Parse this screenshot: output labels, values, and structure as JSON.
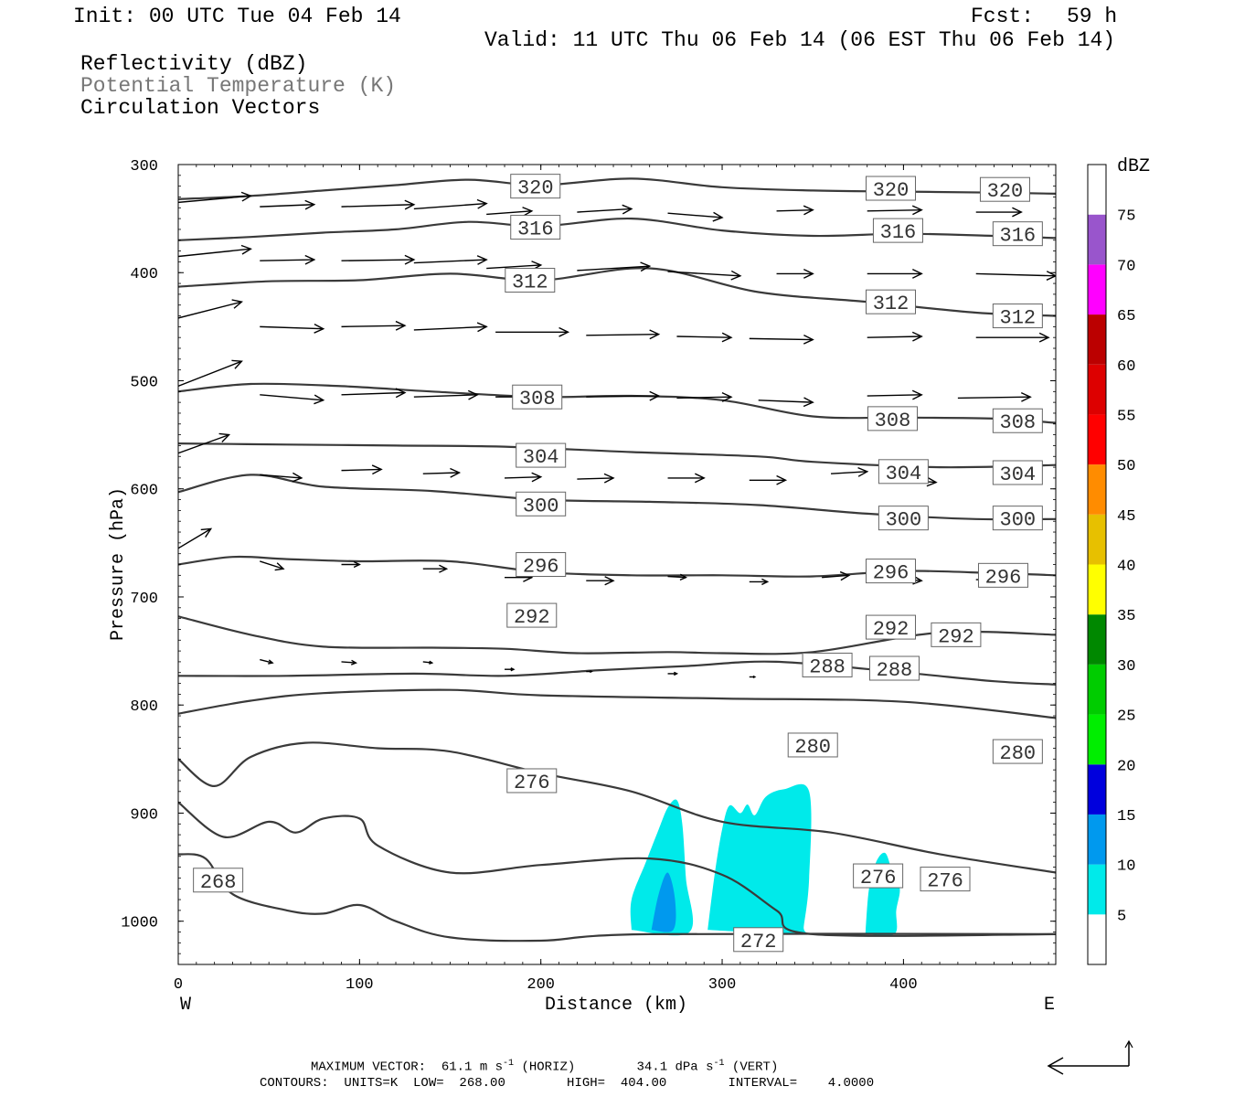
{
  "header": {
    "init": "Init: 00 UTC Tue 04 Feb 14",
    "fcst_label": "Fcst:",
    "fcst_value": "59 h",
    "valid": "Valid: 11 UTC Thu 06 Feb 14 (06 EST Thu 06 Feb 14)"
  },
  "legend_fields": {
    "field1": "Reflectivity (dBZ)",
    "field2": "Potential Temperature (K)",
    "field3": "Circulation Vectors"
  },
  "colorbar": {
    "title": "dBZ",
    "levels": [
      "5",
      "10",
      "15",
      "20",
      "25",
      "30",
      "35",
      "40",
      "45",
      "50",
      "55",
      "60",
      "65",
      "70",
      "75"
    ],
    "colors": [
      "#00eaea",
      "#0099ee",
      "#0000dd",
      "#00ee00",
      "#00cc00",
      "#008800",
      "#ffff00",
      "#e7c000",
      "#ff8c00",
      "#ff0000",
      "#dd0000",
      "#bb0000",
      "#ff00ff",
      "#9955cc"
    ]
  },
  "footer": {
    "line1_a": "MAXIMUM VECTOR:  61.1 m s",
    "line1_b": " (HORIZ)",
    "line1_c": "34.1 dPa s",
    "line1_d": " (VERT)",
    "sup": "-1",
    "line2": "CONTOURS:  UNITS=K  LOW=  268.00        HIGH=  404.00        INTERVAL=    4.0000"
  },
  "chart_data": {
    "type": "contour",
    "xlabel": "Distance (km)",
    "ylabel": "Pressure (hPa)",
    "xlim": [
      0,
      484
    ],
    "ylim": [
      1040,
      300
    ],
    "x_ticks": [
      "0",
      "100",
      "200",
      "300",
      "400"
    ],
    "y_ticks": [
      "300",
      "400",
      "500",
      "600",
      "700",
      "800",
      "900",
      "1000"
    ],
    "x_end_labels": {
      "left": "W",
      "right": "E"
    },
    "theta_contours": [
      {
        "level": 320,
        "points": [
          [
            0,
            332
          ],
          [
            40,
            329
          ],
          [
            80,
            324
          ],
          [
            120,
            319
          ],
          [
            160,
            314
          ],
          [
            200,
            319
          ],
          [
            250,
            313
          ],
          [
            300,
            321
          ],
          [
            350,
            324
          ],
          [
            400,
            325
          ],
          [
            450,
            326
          ],
          [
            484,
            327
          ]
        ],
        "labels": [
          [
            197,
            320
          ],
          [
            393,
            322
          ],
          [
            456,
            323
          ]
        ]
      },
      {
        "level": 316,
        "points": [
          [
            0,
            370
          ],
          [
            40,
            367
          ],
          [
            80,
            363
          ],
          [
            120,
            360
          ],
          [
            160,
            353
          ],
          [
            200,
            357
          ],
          [
            250,
            350
          ],
          [
            300,
            361
          ],
          [
            350,
            366
          ],
          [
            400,
            364
          ],
          [
            450,
            366
          ],
          [
            484,
            368
          ]
        ],
        "labels": [
          [
            197,
            358
          ],
          [
            397,
            361
          ],
          [
            463,
            364
          ]
        ]
      },
      {
        "level": 312,
        "points": [
          [
            0,
            413
          ],
          [
            50,
            408
          ],
          [
            100,
            407
          ],
          [
            150,
            401
          ],
          [
            200,
            407
          ],
          [
            260,
            396
          ],
          [
            320,
            418
          ],
          [
            380,
            427
          ],
          [
            440,
            437
          ],
          [
            484,
            440
          ]
        ],
        "labels": [
          [
            194,
            407
          ],
          [
            393,
            427
          ],
          [
            463,
            440
          ]
        ]
      },
      {
        "level": 308,
        "points": [
          [
            0,
            510
          ],
          [
            40,
            503
          ],
          [
            90,
            505
          ],
          [
            140,
            510
          ],
          [
            200,
            515
          ],
          [
            250,
            514
          ],
          [
            300,
            518
          ],
          [
            350,
            533
          ],
          [
            400,
            534
          ],
          [
            450,
            535
          ],
          [
            484,
            539
          ]
        ],
        "labels": [
          [
            198,
            515
          ],
          [
            394,
            535
          ],
          [
            463,
            537
          ]
        ]
      },
      {
        "level": 304,
        "points": [
          [
            0,
            558
          ],
          [
            60,
            559
          ],
          [
            120,
            560
          ],
          [
            180,
            561
          ],
          [
            250,
            566
          ],
          [
            320,
            570
          ],
          [
            350,
            575
          ],
          [
            420,
            580
          ],
          [
            484,
            578
          ]
        ],
        "labels": [
          [
            200,
            569
          ],
          [
            400,
            584
          ],
          [
            463,
            585
          ]
        ]
      },
      {
        "level": 300,
        "points": [
          [
            0,
            603
          ],
          [
            40,
            587
          ],
          [
            80,
            598
          ],
          [
            140,
            602
          ],
          [
            200,
            610
          ],
          [
            260,
            612
          ],
          [
            320,
            615
          ],
          [
            380,
            623
          ],
          [
            440,
            628
          ],
          [
            484,
            628
          ]
        ],
        "labels": [
          [
            200,
            614
          ],
          [
            400,
            627
          ],
          [
            463,
            627
          ]
        ]
      },
      {
        "level": 296,
        "points": [
          [
            0,
            670
          ],
          [
            30,
            663
          ],
          [
            60,
            665
          ],
          [
            100,
            667
          ],
          [
            150,
            667
          ],
          [
            200,
            677
          ],
          [
            250,
            680
          ],
          [
            300,
            680
          ],
          [
            350,
            681
          ],
          [
            400,
            676
          ],
          [
            450,
            678
          ],
          [
            484,
            680
          ]
        ],
        "labels": [
          [
            200,
            670
          ],
          [
            393,
            676
          ],
          [
            455,
            680
          ]
        ]
      },
      {
        "level": 292,
        "points": [
          [
            0,
            718
          ],
          [
            40,
            735
          ],
          [
            80,
            746
          ],
          [
            140,
            747
          ],
          [
            180,
            748
          ],
          [
            220,
            752
          ],
          [
            270,
            751
          ],
          [
            300,
            752
          ],
          [
            350,
            751
          ],
          [
            420,
            733
          ],
          [
            484,
            735
          ]
        ],
        "labels": [
          [
            195,
            717
          ],
          [
            393,
            728
          ],
          [
            429,
            735
          ]
        ]
      },
      {
        "level": 288,
        "points": [
          [
            0,
            773
          ],
          [
            60,
            773
          ],
          [
            130,
            771
          ],
          [
            180,
            773
          ],
          [
            230,
            768
          ],
          [
            280,
            764
          ],
          [
            330,
            760
          ],
          [
            400,
            770
          ],
          [
            450,
            778
          ],
          [
            484,
            781
          ]
        ],
        "labels": [
          [
            358,
            763
          ],
          [
            395,
            766
          ]
        ]
      },
      {
        "level": 280,
        "points": [
          [
            0,
            808
          ],
          [
            40,
            796
          ],
          [
            80,
            789
          ],
          [
            150,
            786
          ],
          [
            200,
            791
          ],
          [
            300,
            794
          ],
          [
            400,
            797
          ],
          [
            484,
            812
          ]
        ],
        "labels": [
          [
            350,
            837
          ],
          [
            463,
            843
          ]
        ]
      },
      {
        "level": 276,
        "points": [
          [
            0,
            850
          ],
          [
            20,
            875
          ],
          [
            40,
            848
          ],
          [
            70,
            835
          ],
          [
            110,
            840
          ],
          [
            150,
            843
          ],
          [
            200,
            863
          ],
          [
            250,
            880
          ],
          [
            300,
            908
          ],
          [
            360,
            918
          ],
          [
            420,
            938
          ],
          [
            484,
            955
          ]
        ],
        "labels": [
          [
            195,
            870
          ],
          [
            386,
            958
          ],
          [
            423,
            961
          ]
        ]
      },
      {
        "level": 272,
        "points": [
          [
            0,
            890
          ],
          [
            25,
            922
          ],
          [
            50,
            908
          ],
          [
            65,
            918
          ],
          [
            80,
            905
          ],
          [
            100,
            905
          ],
          [
            110,
            930
          ],
          [
            150,
            955
          ],
          [
            200,
            948
          ],
          [
            260,
            942
          ],
          [
            300,
            957
          ],
          [
            330,
            990
          ],
          [
            350,
            1012
          ],
          [
            484,
            1012
          ]
        ],
        "labels": [
          [
            320,
            1017
          ]
        ]
      },
      {
        "level": 268,
        "points": [
          [
            0,
            938
          ],
          [
            15,
            942
          ],
          [
            30,
            975
          ],
          [
            60,
            990
          ],
          [
            80,
            993
          ],
          [
            100,
            985
          ],
          [
            120,
            1000
          ],
          [
            150,
            1015
          ],
          [
            200,
            1018
          ],
          [
            260,
            1012
          ],
          [
            484,
            1012
          ]
        ],
        "labels": [
          [
            22,
            962
          ]
        ]
      }
    ],
    "reflectivity_areas": [
      {
        "dbz": 5,
        "points": [
          [
            250,
            1008
          ],
          [
            250,
            980
          ],
          [
            258,
            945
          ],
          [
            265,
            915
          ],
          [
            270,
            895
          ],
          [
            275,
            888
          ],
          [
            278,
            910
          ],
          [
            280,
            960
          ],
          [
            282,
            1010
          ]
        ]
      },
      {
        "dbz": 10,
        "points": [
          [
            261,
            1008
          ],
          [
            265,
            975
          ],
          [
            270,
            955
          ],
          [
            274,
            980
          ],
          [
            273,
            1008
          ]
        ]
      },
      {
        "dbz": 5,
        "points": [
          [
            292,
            1008
          ],
          [
            296,
            955
          ],
          [
            300,
            915
          ],
          [
            304,
            893
          ],
          [
            310,
            900
          ],
          [
            314,
            892
          ],
          [
            318,
            902
          ],
          [
            324,
            885
          ],
          [
            334,
            878
          ],
          [
            348,
            880
          ],
          [
            348,
            960
          ],
          [
            345,
            1005
          ],
          [
            344,
            1012
          ]
        ]
      },
      {
        "dbz": 5,
        "points": [
          [
            379,
            1012
          ],
          [
            381,
            970
          ],
          [
            385,
            945
          ],
          [
            390,
            937
          ],
          [
            394,
            955
          ],
          [
            398,
            970
          ],
          [
            396,
            990
          ],
          [
            395,
            1012
          ]
        ]
      }
    ],
    "vectors": [
      [
        0,
        335,
        40,
        329
      ],
      [
        45,
        339,
        75,
        337
      ],
      [
        90,
        339,
        130,
        337
      ],
      [
        130,
        341,
        170,
        336
      ],
      [
        170,
        346,
        195,
        343
      ],
      [
        220,
        344,
        250,
        341
      ],
      [
        270,
        345,
        300,
        349
      ],
      [
        330,
        343,
        350,
        342
      ],
      [
        380,
        343,
        410,
        342
      ],
      [
        440,
        344,
        465,
        344
      ],
      [
        0,
        385,
        40,
        378
      ],
      [
        45,
        389,
        75,
        388
      ],
      [
        90,
        389,
        130,
        388
      ],
      [
        130,
        391,
        170,
        388
      ],
      [
        170,
        396,
        200,
        393
      ],
      [
        220,
        398,
        260,
        394
      ],
      [
        270,
        399,
        310,
        403
      ],
      [
        330,
        401,
        350,
        401
      ],
      [
        380,
        401,
        410,
        401
      ],
      [
        440,
        401,
        484,
        403
      ],
      [
        0,
        442,
        35,
        427
      ],
      [
        45,
        450,
        80,
        452
      ],
      [
        90,
        450,
        125,
        449
      ],
      [
        130,
        453,
        170,
        450
      ],
      [
        175,
        455,
        215,
        455
      ],
      [
        225,
        458,
        265,
        457
      ],
      [
        275,
        459,
        305,
        460
      ],
      [
        315,
        461,
        350,
        462
      ],
      [
        380,
        460,
        410,
        459
      ],
      [
        440,
        460,
        480,
        460
      ],
      [
        0,
        505,
        35,
        482
      ],
      [
        45,
        513,
        80,
        518
      ],
      [
        90,
        513,
        125,
        511
      ],
      [
        130,
        515,
        165,
        513
      ],
      [
        175,
        515,
        210,
        515
      ],
      [
        225,
        515,
        265,
        514
      ],
      [
        275,
        516,
        305,
        515
      ],
      [
        320,
        518,
        350,
        520
      ],
      [
        380,
        514,
        410,
        513
      ],
      [
        430,
        516,
        470,
        515
      ],
      [
        0,
        567,
        28,
        550
      ],
      [
        45,
        587,
        68,
        590
      ],
      [
        90,
        583,
        112,
        582
      ],
      [
        135,
        586,
        155,
        585
      ],
      [
        180,
        590,
        200,
        589
      ],
      [
        220,
        591,
        240,
        590
      ],
      [
        270,
        590,
        290,
        590
      ],
      [
        315,
        592,
        335,
        592
      ],
      [
        360,
        586,
        380,
        584
      ],
      [
        400,
        592,
        418,
        594
      ],
      [
        0,
        655,
        18,
        637
      ],
      [
        45,
        667,
        58,
        674
      ],
      [
        90,
        670,
        100,
        670
      ],
      [
        135,
        674,
        148,
        674
      ],
      [
        180,
        682,
        195,
        682
      ],
      [
        225,
        685,
        240,
        685
      ],
      [
        270,
        681,
        280,
        682
      ],
      [
        315,
        686,
        325,
        686
      ],
      [
        355,
        682,
        370,
        680
      ],
      [
        395,
        683,
        410,
        685
      ],
      [
        440,
        684,
        455,
        684
      ],
      [
        45,
        758,
        52,
        761
      ],
      [
        90,
        760,
        98,
        761
      ],
      [
        135,
        760,
        140,
        761
      ],
      [
        180,
        767,
        185,
        767
      ],
      [
        225,
        769,
        228,
        769
      ],
      [
        270,
        771,
        275,
        771
      ],
      [
        315,
        774,
        318,
        774
      ]
    ]
  }
}
